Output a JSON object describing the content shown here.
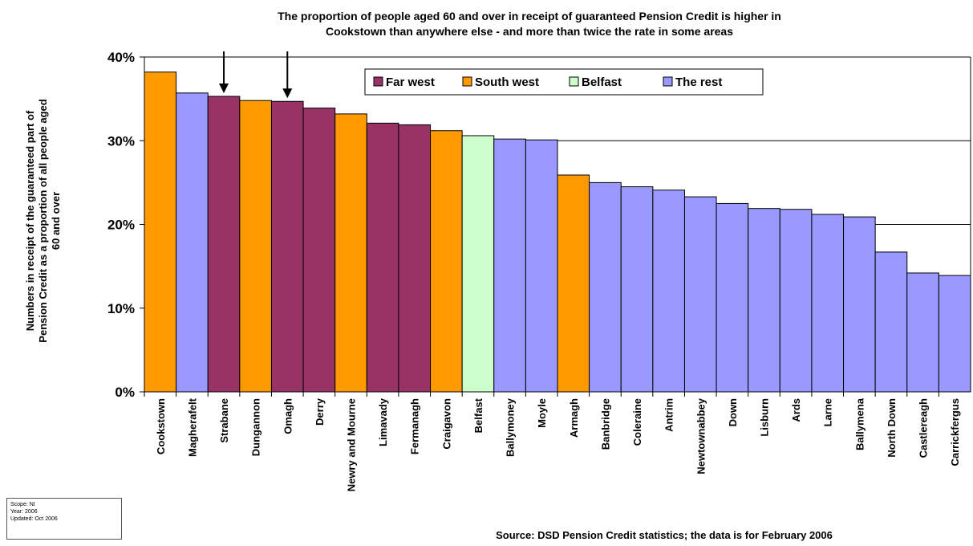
{
  "chart_data": {
    "type": "bar",
    "title_line1": "The proportion of people aged 60 and over in receipt of guaranteed Pension Credit is higher in",
    "title_line2": "Cookstown than anywhere else - and more than twice the rate in some areas",
    "ylabel_line1": "Numbers in receipt of the guaranteed part of",
    "ylabel_line2": "Pension Credit as a proportion of all people aged",
    "ylabel_line3": "60 and over",
    "xlabel": "",
    "ylim": [
      0,
      40
    ],
    "yticks": [
      "0%",
      "10%",
      "20%",
      "30%",
      "40%"
    ],
    "grid": true,
    "legend_position": "top-center",
    "legend": [
      {
        "name": "Far west",
        "color": "#993366"
      },
      {
        "name": "South west",
        "color": "#ff9900"
      },
      {
        "name": "Belfast",
        "color": "#ccffcc"
      },
      {
        "name": "The rest",
        "color": "#9999ff"
      }
    ],
    "categories": [
      "Cookstown",
      "Magherafelt",
      "Strabane",
      "Dungannon",
      "Omagh",
      "Derry",
      "Newry and Mourne",
      "Limavady",
      "Fermanagh",
      "Craigavon",
      "Belfast",
      "Ballymoney",
      "Moyle",
      "Armagh",
      "Banbridge",
      "Coleraine",
      "Antrim",
      "Newtownabbey",
      "Down",
      "Lisburn",
      "Ards",
      "Larne",
      "Ballymena",
      "North Down",
      "Castlereagh",
      "Carrickfergus"
    ],
    "values": [
      38.2,
      35.7,
      35.3,
      34.8,
      34.7,
      33.9,
      33.2,
      32.1,
      31.9,
      31.2,
      30.6,
      30.2,
      30.1,
      25.9,
      25.0,
      24.5,
      24.1,
      23.3,
      22.5,
      21.9,
      21.8,
      21.2,
      20.9,
      16.7,
      14.2,
      13.9
    ],
    "groups": [
      "South west",
      "The rest",
      "Far west",
      "South west",
      "Far west",
      "Far west",
      "South west",
      "Far west",
      "Far west",
      "South west",
      "Belfast",
      "The rest",
      "The rest",
      "South west",
      "The rest",
      "The rest",
      "The rest",
      "The rest",
      "The rest",
      "The rest",
      "The rest",
      "The rest",
      "The rest",
      "The rest",
      "The rest",
      "The rest"
    ],
    "arrows_on": [
      "Strabane",
      "Omagh"
    ],
    "source": "Source: DSD Pension Credit statistics; the data is for February 2006"
  },
  "meta_box": {
    "line1": "Scope:   NI",
    "line2": "Year:     2006",
    "line3": "Updated: Oct 2006"
  }
}
